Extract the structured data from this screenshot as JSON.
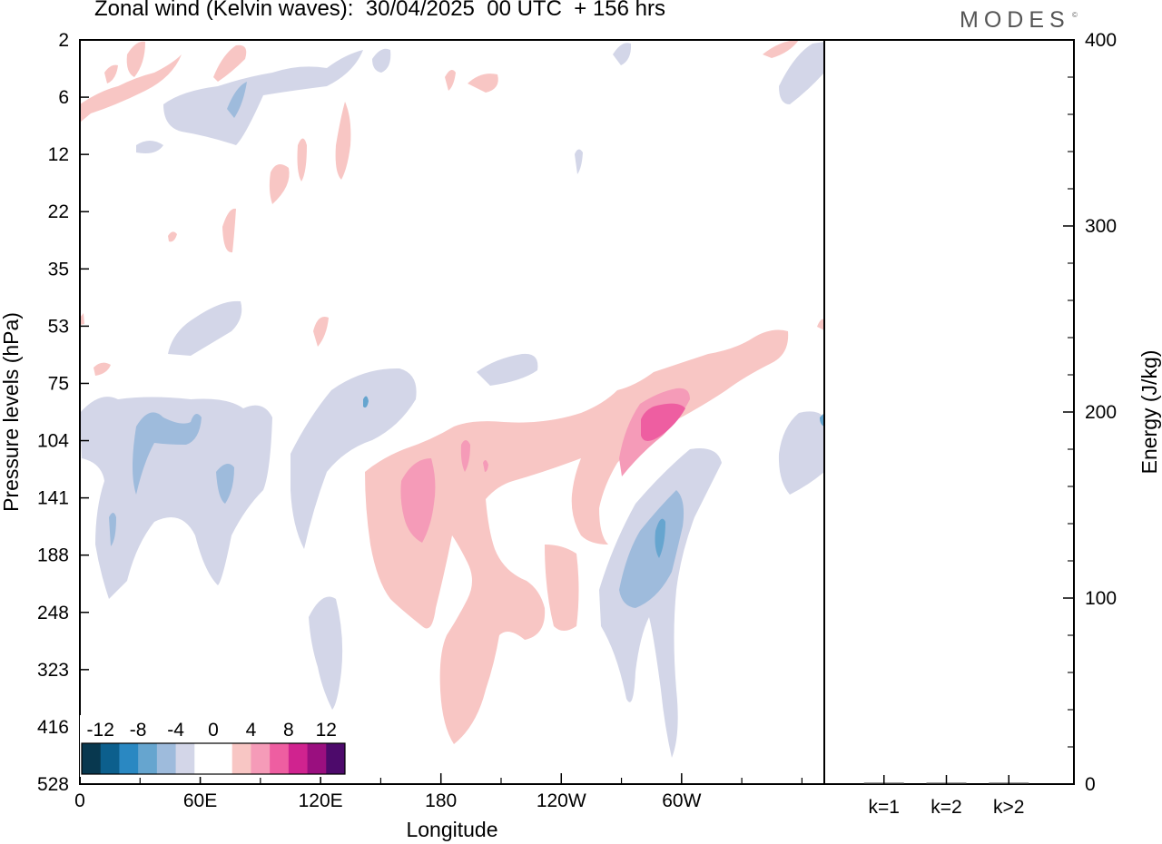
{
  "header": {
    "title": "Zonal wind (Kelvin waves):  30/04/2025  00 UTC  + 156 hrs",
    "brand": "MODES",
    "brand_mark": "©"
  },
  "chart_data": [
    {
      "type": "heatmap",
      "title": "Zonal wind (Kelvin waves):  30/04/2025  00 UTC  + 156 hrs",
      "xlabel": "Longitude",
      "ylabel": "Pressure levels (hPa)",
      "x_ticks": [
        "0",
        "60E",
        "120E",
        "180",
        "120W",
        "60W"
      ],
      "y_ticks": [
        "2",
        "6",
        "12",
        "22",
        "35",
        "53",
        "75",
        "104",
        "141",
        "188",
        "248",
        "323",
        "416",
        "528"
      ],
      "colorbar": {
        "labels": [
          "-12",
          "-8",
          "-4",
          "0",
          "4",
          "8",
          "12"
        ],
        "colors": [
          "#08384f",
          "#0c5f8d",
          "#2a88c2",
          "#66a5cf",
          "#9ebbdc",
          "#d3d6e8",
          "#ffffff",
          "#ffffff",
          "#f8c6c4",
          "#f59bb8",
          "#ee5ea1",
          "#d0238f",
          "#9a0f7f",
          "#4d0a6b"
        ]
      },
      "features": [
        {
          "sign": "positive",
          "level": 1,
          "description": "broad upper-tropospheric band 150E–45W, 104–416 hPa"
        },
        {
          "sign": "positive",
          "level": 2,
          "description": "core near 165E, 120–180 hPa"
        },
        {
          "sign": "positive",
          "level": 3,
          "description": "core near 65W, 90–110 hPa"
        },
        {
          "sign": "negative",
          "level": 1,
          "description": "band 5E–90E, 75–248 hPa"
        },
        {
          "sign": "negative",
          "level": 2,
          "description": "core near 30E, 95–110 hPa"
        },
        {
          "sign": "negative",
          "level": 2,
          "description": "core near 60W, 141–248 hPa"
        }
      ]
    },
    {
      "type": "bar",
      "categories": [
        "k=1",
        "k=2",
        "k>2"
      ],
      "values": [
        0.4,
        0.2,
        0.3
      ],
      "ylabel": "Energy (J/kg)",
      "ylim": [
        0,
        400
      ],
      "y_ticks": [
        "0",
        "100",
        "200",
        "300",
        "400"
      ]
    }
  ]
}
